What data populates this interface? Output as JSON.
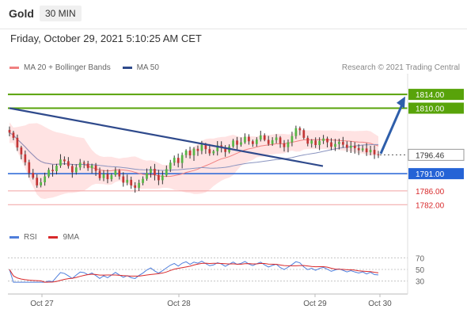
{
  "header": {
    "instrument": "Gold",
    "timeframe": "30 MIN",
    "datetime": "Friday, October 29, 2021 5:10:25 AM CET"
  },
  "legend": {
    "ma20": "MA 20 + Bollinger Bands",
    "ma50": "MA 50",
    "rsi": "RSI",
    "rsi_ma": "9MA"
  },
  "credit": "Research © 2021 Trading Central",
  "colors": {
    "up": "#55b545",
    "down": "#c33636",
    "ma20": "#f08080",
    "band_fill": "#ffe3e3",
    "ma50": "#8a94c0",
    "trend": "#2f4a8c",
    "resist": "#58a30a",
    "pivot": "#2563d6",
    "support": "#d8292b",
    "rsi": "#4f7edb",
    "rsi_ma": "#d8292b",
    "arrow": "#2e5eaa"
  },
  "chart_data": [
    {
      "type": "candlestick",
      "title": "Gold 30 MIN",
      "x_ticks": [
        "Oct 27",
        "Oct 28",
        "Oct 29",
        "Oct 30"
      ],
      "ylim": [
        1777,
        1820
      ],
      "levels": [
        {
          "value": 1814.0,
          "label": "1814.00",
          "kind": "resistance"
        },
        {
          "value": 1810.0,
          "label": "1810.00",
          "kind": "resistance"
        },
        {
          "value": 1796.46,
          "label": "1796.46",
          "kind": "last"
        },
        {
          "value": 1791.0,
          "label": "1791.00",
          "kind": "pivot"
        },
        {
          "value": 1786.0,
          "label": "1786.00",
          "kind": "support"
        },
        {
          "value": 1782.0,
          "label": "1782.00",
          "kind": "support"
        }
      ],
      "series": [
        {
          "name": "MA 20 + Bollinger Bands"
        },
        {
          "name": "MA 50"
        }
      ],
      "closes": [
        1802.9,
        1801.4,
        1798.6,
        1796.6,
        1794.3,
        1791.2,
        1789.8,
        1787.6,
        1788.5,
        1790.2,
        1792.1,
        1791.7,
        1793.3,
        1795.1,
        1794.6,
        1793.2,
        1791.4,
        1792.8,
        1794.2,
        1793.9,
        1792.6,
        1793.4,
        1791.8,
        1789.7,
        1790.9,
        1789.4,
        1790.6,
        1791.9,
        1790.2,
        1788.4,
        1789.2,
        1787.6,
        1786.9,
        1788.3,
        1789.5,
        1791.2,
        1792.4,
        1790.6,
        1789.1,
        1790.5,
        1792.3,
        1794.2,
        1795.6,
        1794.1,
        1796.4,
        1797.7,
        1796.3,
        1798.2,
        1797.6,
        1799.4,
        1798.1,
        1796.9,
        1797.5,
        1799.2,
        1798.6,
        1797.3,
        1798.9,
        1800.6,
        1799.4,
        1800.1,
        1801.7,
        1800.4,
        1799.6,
        1800.9,
        1802.1,
        1800.8,
        1799.6,
        1800.7,
        1801.5,
        1799.8,
        1798.7,
        1800.1,
        1801.9,
        1804.2,
        1803.6,
        1801.4,
        1799.7,
        1800.6,
        1799.3,
        1800.5,
        1801.2,
        1800.1,
        1798.8,
        1799.6,
        1800.2,
        1799.4,
        1798.5,
        1799.1,
        1798.4,
        1797.8,
        1798.3,
        1797.2,
        1797.9,
        1796.6,
        1796.46
      ],
      "highs_lows_note": "ranges estimated from chart",
      "rsi": {
        "levels": [
          70,
          50,
          30
        ]
      }
    }
  ]
}
